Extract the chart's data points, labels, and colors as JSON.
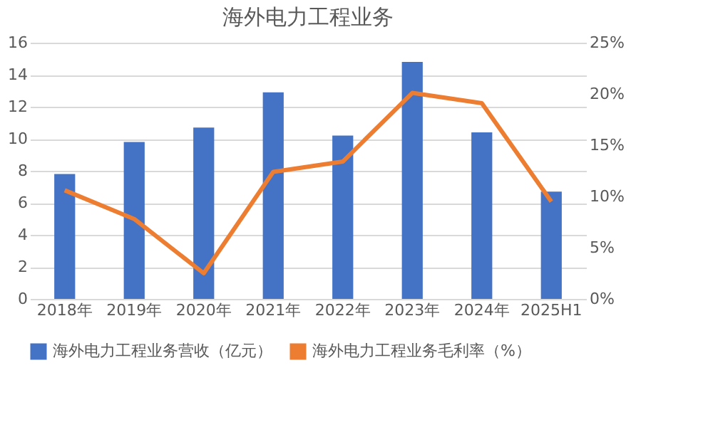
{
  "chart_data": {
    "type": "bar",
    "title": "海外电力工程业务",
    "categories": [
      "2018年",
      "2019年",
      "2020年",
      "2021年",
      "2022年",
      "2023年",
      "2024年",
      "2025H1"
    ],
    "series": [
      {
        "name": "海外电力工程业务营收（亿元）",
        "color": "#4472c4",
        "values": [
          7.8,
          9.8,
          10.7,
          12.9,
          10.2,
          14.8,
          10.4,
          6.7
        ]
      },
      {
        "name": "海外电力工程业务毛利率（%）",
        "color": "#ed7d31",
        "type": "line",
        "axis": "y2",
        "values": [
          10.6,
          7.8,
          2.5,
          12.4,
          13.4,
          20.1,
          19.1,
          9.5
        ]
      }
    ],
    "ylim": [
      0,
      16
    ],
    "yticks": [
      0,
      2,
      4,
      6,
      8,
      10,
      12,
      14,
      16
    ],
    "y2lim": [
      0,
      25
    ],
    "y2ticks": [
      {
        "value": 0,
        "label": "0%"
      },
      {
        "value": 5,
        "label": "5%"
      },
      {
        "value": 10,
        "label": "10%"
      },
      {
        "value": 15,
        "label": "15%"
      },
      {
        "value": 20,
        "label": "20%"
      },
      {
        "value": 25,
        "label": "25%"
      }
    ],
    "grid": "y",
    "legend": "bottom",
    "marker": "none",
    "line_style": "solid"
  }
}
